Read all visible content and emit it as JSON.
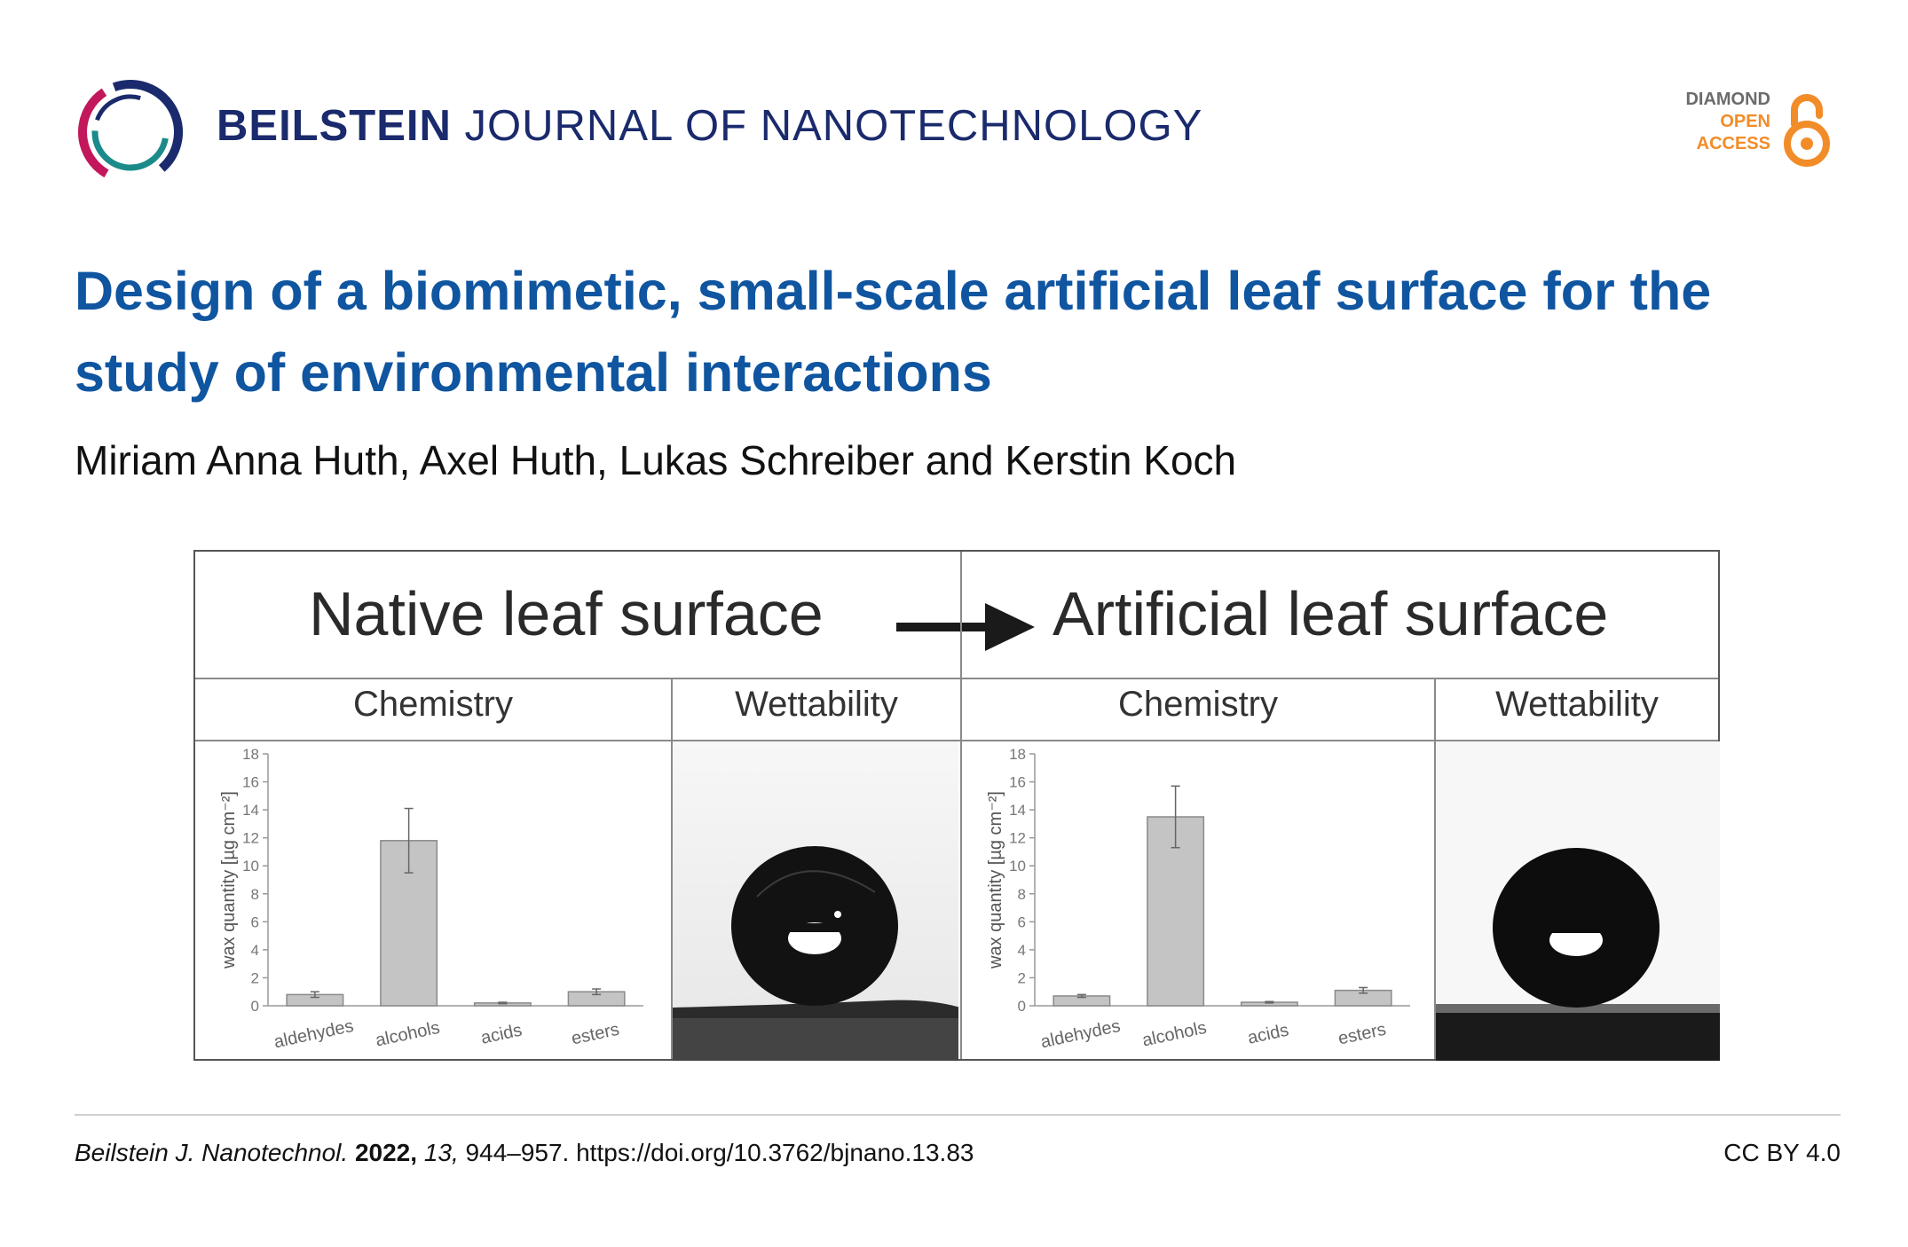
{
  "journal": {
    "name_bold": "BEILSTEIN",
    "name_rest": "JOURNAL OF NANOTECHNOLOGY"
  },
  "badge": {
    "line1": "DIAMOND",
    "line2": "OPEN",
    "line3": "ACCESS"
  },
  "article": {
    "title": "Design of a biomimetic, small-scale artificial leaf surface for the study of environmental interactions",
    "authors": "Miriam Anna Huth, Axel Huth, Lukas Schreiber and Kerstin Koch"
  },
  "figure": {
    "native_heading": "Native leaf surface",
    "artificial_heading": "Artificial leaf surface",
    "chemistry_label": "Chemistry",
    "wettability_label": "Wettability"
  },
  "chart_data": [
    {
      "type": "bar",
      "panel": "native",
      "title": "",
      "xlabel": "",
      "ylabel": "wax quantity [µg cm⁻²]",
      "ylim": [
        0,
        18
      ],
      "yticks": [
        0,
        2,
        4,
        6,
        8,
        10,
        12,
        14,
        16,
        18
      ],
      "categories": [
        "aldehydes",
        "alcohols",
        "acids",
        "esters"
      ],
      "values": [
        0.8,
        11.8,
        0.2,
        1.0
      ],
      "errors": [
        0.2,
        2.3,
        0.05,
        0.2
      ],
      "bar_color": "#c4c4c4"
    },
    {
      "type": "bar",
      "panel": "artificial",
      "title": "",
      "xlabel": "",
      "ylabel": "wax quantity [µg cm⁻²]",
      "ylim": [
        0,
        18
      ],
      "yticks": [
        0,
        2,
        4,
        6,
        8,
        10,
        12,
        14,
        16,
        18
      ],
      "categories": [
        "aldehydes",
        "alcohols",
        "acids",
        "esters"
      ],
      "values": [
        0.7,
        13.5,
        0.25,
        1.1
      ],
      "errors": [
        0.1,
        2.2,
        0.05,
        0.2
      ],
      "bar_color": "#c4c4c4"
    }
  ],
  "footer": {
    "journal_abbrev": "Beilstein J. Nanotechnol.",
    "year": "2022,",
    "volume": "13,",
    "pages_doi": "944–957. https://doi.org/10.3762/bjnano.13.83",
    "license": "CC BY 4.0"
  },
  "colors": {
    "title": "#0f55a0",
    "journal": "#1a2a6c",
    "oa_orange": "#f28c28"
  }
}
